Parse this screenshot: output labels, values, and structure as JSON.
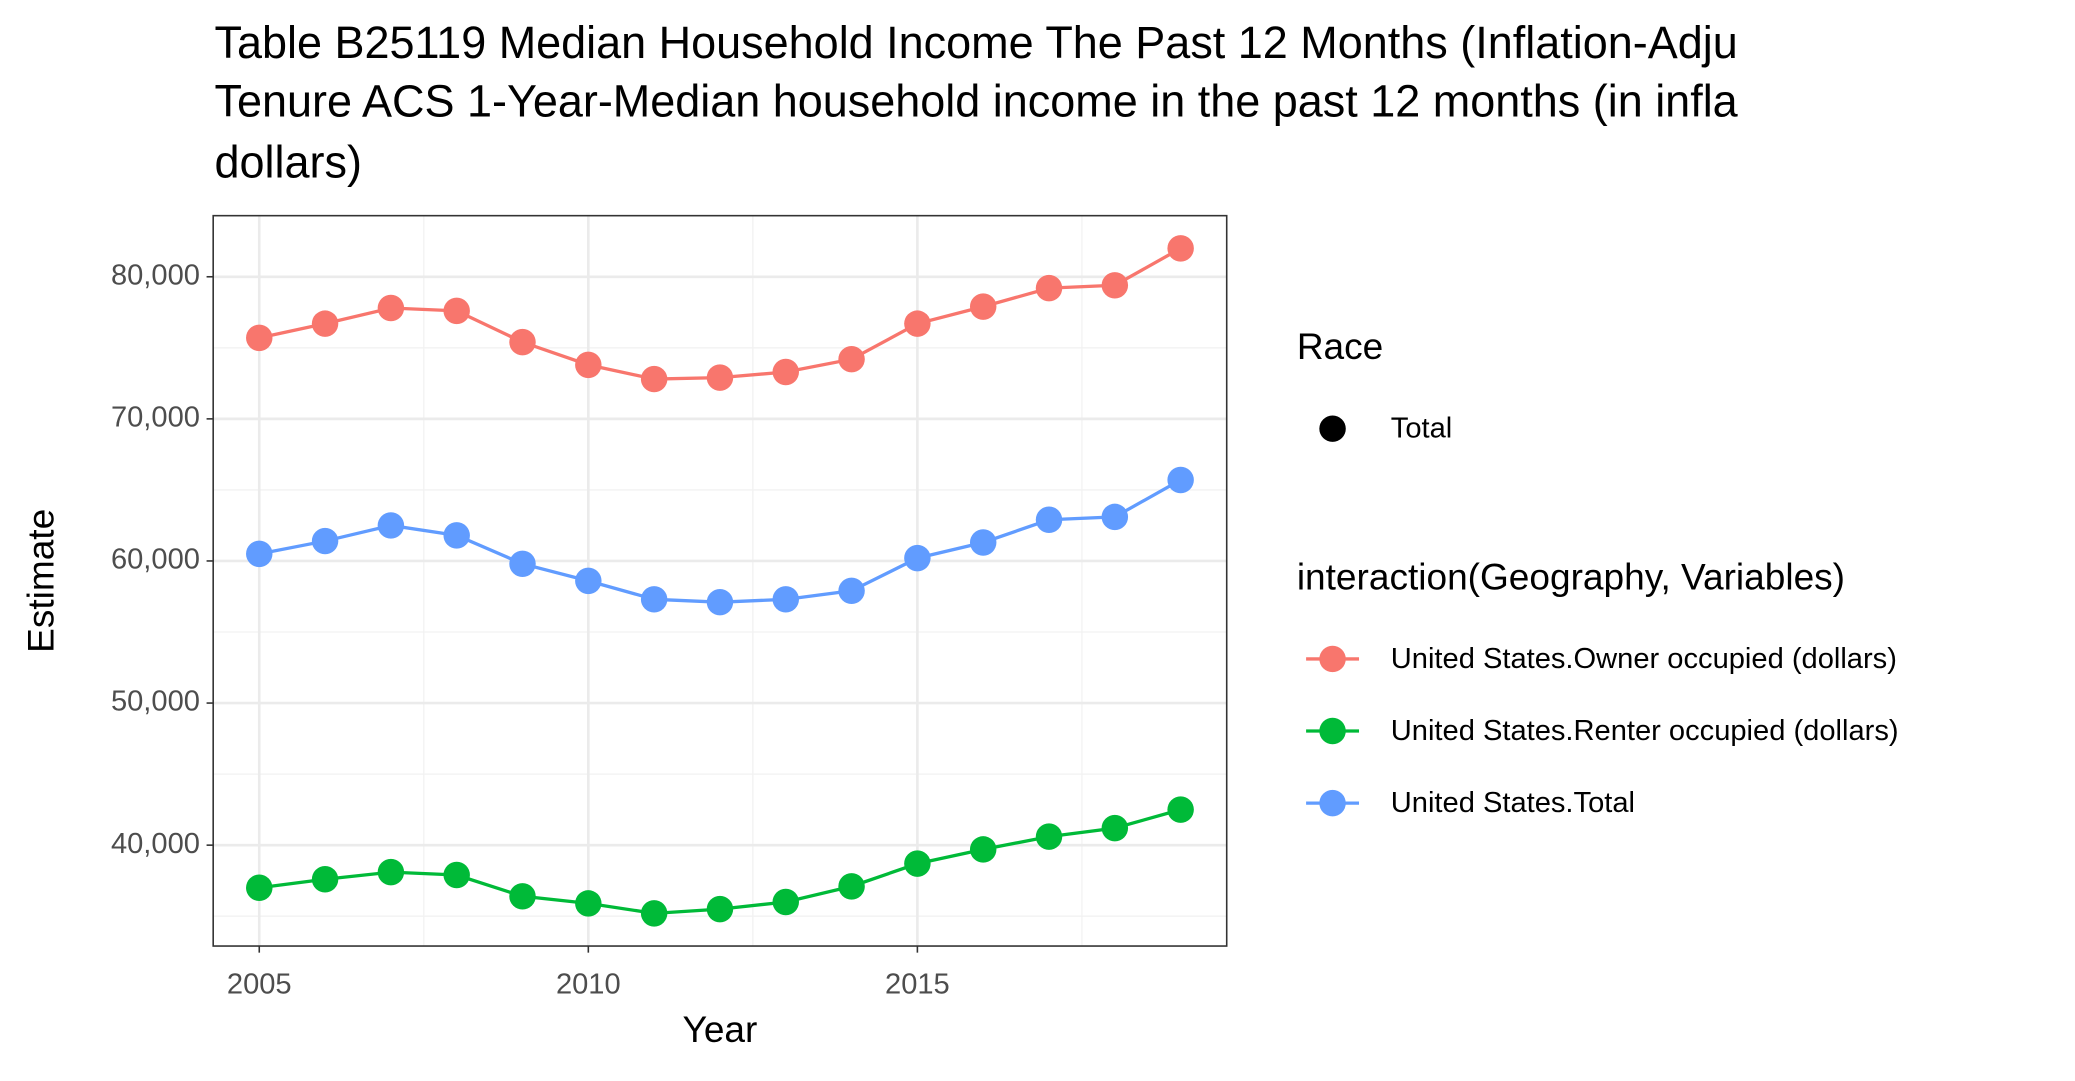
{
  "chart_data": {
    "type": "line",
    "title": [
      "Table B25119 Median Household Income The Past 12 Months (Inflation-Adju",
      "Tenure ACS 1-Year-Median household income in the past 12 months (in infla",
      "dollars)"
    ],
    "x_label": "Year",
    "y_label": "Estimate",
    "x": [
      2005,
      2006,
      2007,
      2008,
      2009,
      2010,
      2011,
      2012,
      2013,
      2014,
      2015,
      2016,
      2017,
      2018,
      2019
    ],
    "series": [
      {
        "name": "United States.Owner occupied (dollars)",
        "color": "#f8766d",
        "values": [
          75700,
          76700,
          77800,
          77600,
          75400,
          73800,
          72800,
          72900,
          73300,
          74200,
          76700,
          77900,
          79200,
          79400,
          82000
        ]
      },
      {
        "name": "United States.Renter occupied (dollars)",
        "color": "#00ba38",
        "values": [
          37000,
          37600,
          38100,
          37900,
          36400,
          35900,
          35200,
          35500,
          36000,
          37100,
          38700,
          39700,
          40600,
          41200,
          42500
        ]
      },
      {
        "name": "United States.Total",
        "color": "#619cff",
        "values": [
          60500,
          61400,
          62500,
          61800,
          59800,
          58600,
          57300,
          57100,
          57300,
          57900,
          60200,
          61300,
          62900,
          63100,
          65700
        ]
      }
    ],
    "xlim": [
      2004.3,
      2019.7
    ],
    "ylim": [
      32900,
      84300
    ],
    "xticks": [
      2005,
      2010,
      2015
    ],
    "yticks": [
      {
        "value": 40000,
        "label": "40,000"
      },
      {
        "value": 50000,
        "label": "50,000"
      },
      {
        "value": 60000,
        "label": "60,000"
      },
      {
        "value": 70000,
        "label": "70,000"
      },
      {
        "value": 80000,
        "label": "80,000"
      }
    ],
    "grid": true,
    "legend": {
      "shape_title": "Race",
      "shape_label": "Total",
      "shape_color": "#000000",
      "color_title": "interaction(Geography, Variables)",
      "position": "right"
    }
  }
}
